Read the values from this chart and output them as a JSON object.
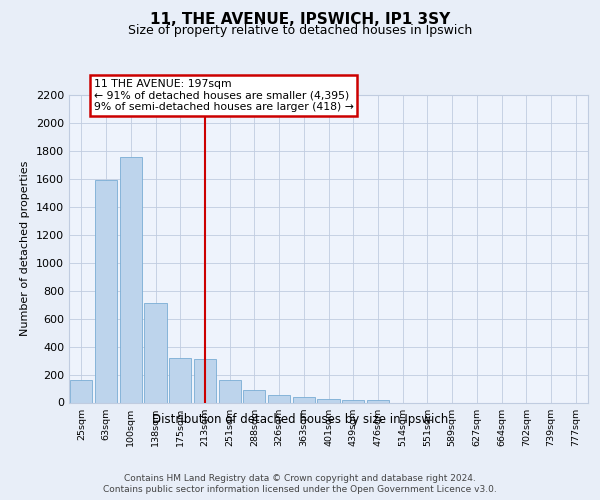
{
  "title1": "11, THE AVENUE, IPSWICH, IP1 3SY",
  "title2": "Size of property relative to detached houses in Ipswich",
  "xlabel": "Distribution of detached houses by size in Ipswich",
  "ylabel": "Number of detached properties",
  "categories": [
    "25sqm",
    "63sqm",
    "100sqm",
    "138sqm",
    "175sqm",
    "213sqm",
    "251sqm",
    "288sqm",
    "326sqm",
    "363sqm",
    "401sqm",
    "439sqm",
    "476sqm",
    "514sqm",
    "551sqm",
    "589sqm",
    "627sqm",
    "664sqm",
    "702sqm",
    "739sqm",
    "777sqm"
  ],
  "values": [
    160,
    1590,
    1760,
    710,
    320,
    310,
    160,
    90,
    55,
    40,
    25,
    20,
    20,
    0,
    0,
    0,
    0,
    0,
    0,
    0,
    0
  ],
  "bar_color": "#bdd4ec",
  "bar_edge_color": "#7aadd4",
  "vline_x": 5.0,
  "vline_color": "#cc0000",
  "annotation_line1": "11 THE AVENUE: 197sqm",
  "annotation_line2": "← 91% of detached houses are smaller (4,395)",
  "annotation_line3": "9% of semi-detached houses are larger (418) →",
  "annotation_box_color": "#cc0000",
  "ylim": [
    0,
    2200
  ],
  "yticks": [
    0,
    200,
    400,
    600,
    800,
    1000,
    1200,
    1400,
    1600,
    1800,
    2000,
    2200
  ],
  "footer1": "Contains HM Land Registry data © Crown copyright and database right 2024.",
  "footer2": "Contains public sector information licensed under the Open Government Licence v3.0.",
  "bg_color": "#e8eef8",
  "plot_bg_color": "#eef3fc"
}
